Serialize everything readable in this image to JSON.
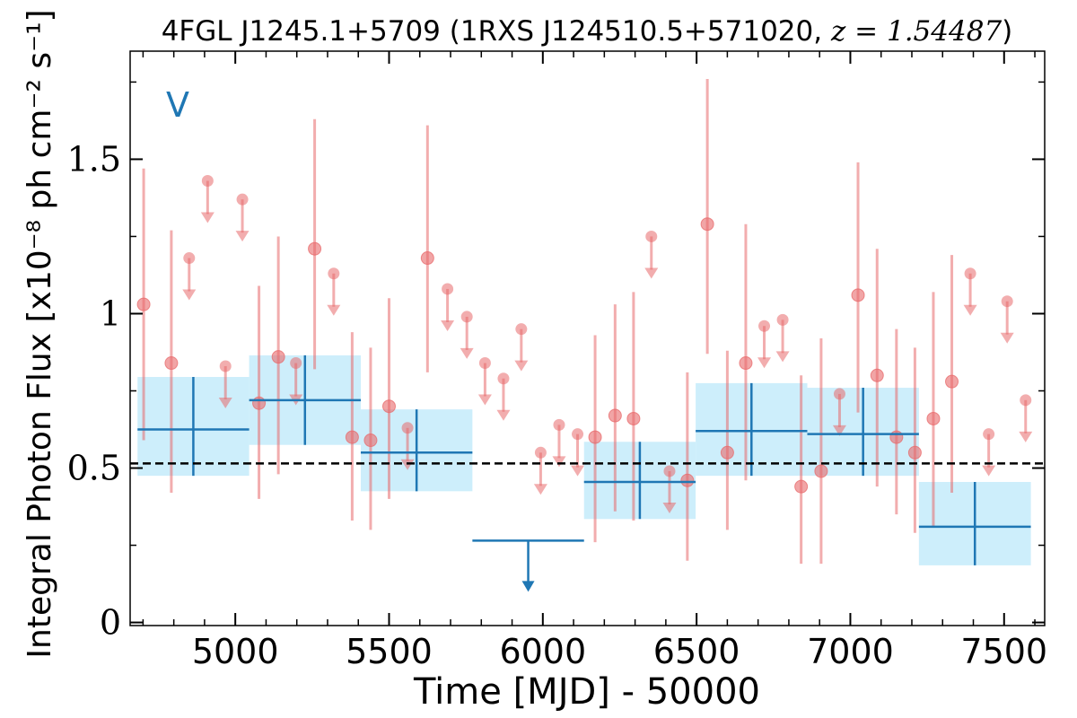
{
  "chart_data": {
    "type": "scatter",
    "title_text": "4FGL J1245.1+5709 (1RXS J124510.5+571020, ",
    "title_math": "z = 1.54487",
    "title_close": ")",
    "ylabel": "Integral Photon Flux [x10⁻⁸ ph cm⁻² s⁻¹]",
    "xlabel": "Time [MJD] - 50000",
    "panel_label": "V",
    "xlim": [
      4658,
      7632
    ],
    "ylim": [
      -0.01,
      1.85
    ],
    "x_ticks": [
      {
        "value": 5000,
        "label": "5000"
      },
      {
        "value": 5500,
        "label": "5500"
      },
      {
        "value": 6000,
        "label": "6000"
      },
      {
        "value": 6500,
        "label": "6500"
      },
      {
        "value": 7000,
        "label": "7000"
      },
      {
        "value": 7500,
        "label": "7500"
      }
    ],
    "y_ticks": [
      {
        "value": 0,
        "label": "0"
      },
      {
        "value": 0.5,
        "label": "0.5"
      },
      {
        "value": 1,
        "label": "1"
      },
      {
        "value": 1.5,
        "label": "1.5"
      }
    ],
    "x_minor_step": 100,
    "y_minor_step": 0.25,
    "reference_line": {
      "y": 0.515,
      "style": "dashed"
    },
    "colors": {
      "binned": "#1f77b4",
      "band": "#cdeefb",
      "monthly": "#e8696b",
      "reference": "#000000"
    },
    "series": [
      {
        "kind": "detections",
        "points": [
          {
            "x": 4702,
            "y": 1.03,
            "lo": 0.59,
            "hi": 1.47
          },
          {
            "x": 4792,
            "y": 0.84,
            "lo": 0.42,
            "hi": 1.27
          },
          {
            "x": 5077,
            "y": 0.71,
            "lo": 0.4,
            "hi": 1.09
          },
          {
            "x": 5140,
            "y": 0.86,
            "lo": 0.48,
            "hi": 1.25
          },
          {
            "x": 5258,
            "y": 1.21,
            "lo": 0.82,
            "hi": 1.63
          },
          {
            "x": 5380,
            "y": 0.6,
            "lo": 0.33,
            "hi": 0.94
          },
          {
            "x": 5440,
            "y": 0.59,
            "lo": 0.3,
            "hi": 0.89
          },
          {
            "x": 5500,
            "y": 0.7,
            "lo": 0.4,
            "hi": 1.05
          },
          {
            "x": 5625,
            "y": 1.18,
            "lo": 0.81,
            "hi": 1.61
          },
          {
            "x": 6170,
            "y": 0.6,
            "lo": 0.26,
            "hi": 0.93
          },
          {
            "x": 6235,
            "y": 0.67,
            "lo": 0.36,
            "hi": 1.03
          },
          {
            "x": 6295,
            "y": 0.66,
            "lo": 0.33,
            "hi": 1.07
          },
          {
            "x": 6470,
            "y": 0.46,
            "lo": 0.2,
            "hi": 0.81
          },
          {
            "x": 6535,
            "y": 1.29,
            "lo": 0.87,
            "hi": 1.76
          },
          {
            "x": 6600,
            "y": 0.55,
            "lo": 0.3,
            "hi": 0.88
          },
          {
            "x": 6660,
            "y": 0.84,
            "lo": 0.46,
            "hi": 1.29
          },
          {
            "x": 6840,
            "y": 0.44,
            "lo": 0.19,
            "hi": 0.8
          },
          {
            "x": 6905,
            "y": 0.49,
            "lo": 0.19,
            "hi": 0.92
          },
          {
            "x": 7025,
            "y": 1.06,
            "lo": 0.68,
            "hi": 1.49
          },
          {
            "x": 7087,
            "y": 0.8,
            "lo": 0.44,
            "hi": 1.21
          },
          {
            "x": 7150,
            "y": 0.6,
            "lo": 0.35,
            "hi": 0.95
          },
          {
            "x": 7210,
            "y": 0.55,
            "lo": 0.29,
            "hi": 0.89
          },
          {
            "x": 7270,
            "y": 0.66,
            "lo": 0.31,
            "hi": 1.07
          },
          {
            "x": 7330,
            "y": 0.78,
            "lo": 0.42,
            "hi": 1.19
          }
        ]
      },
      {
        "kind": "upper_limits",
        "points": [
          {
            "x": 4850,
            "y": 1.18
          },
          {
            "x": 4910,
            "y": 1.43
          },
          {
            "x": 4968,
            "y": 0.83
          },
          {
            "x": 5023,
            "y": 1.37
          },
          {
            "x": 5197,
            "y": 0.84
          },
          {
            "x": 5320,
            "y": 1.13
          },
          {
            "x": 5560,
            "y": 0.63
          },
          {
            "x": 5690,
            "y": 1.08
          },
          {
            "x": 5753,
            "y": 0.99
          },
          {
            "x": 5812,
            "y": 0.84
          },
          {
            "x": 5872,
            "y": 0.79
          },
          {
            "x": 5930,
            "y": 0.95
          },
          {
            "x": 5993,
            "y": 0.55
          },
          {
            "x": 6053,
            "y": 0.64
          },
          {
            "x": 6113,
            "y": 0.61
          },
          {
            "x": 6353,
            "y": 1.25
          },
          {
            "x": 6412,
            "y": 0.49
          },
          {
            "x": 6720,
            "y": 0.96
          },
          {
            "x": 6780,
            "y": 0.98
          },
          {
            "x": 6965,
            "y": 0.74
          },
          {
            "x": 7390,
            "y": 1.13
          },
          {
            "x": 7450,
            "y": 0.61
          },
          {
            "x": 7510,
            "y": 1.04
          },
          {
            "x": 7570,
            "y": 0.72
          }
        ]
      },
      {
        "kind": "binned",
        "points": [
          {
            "x0": 4682,
            "x1": 5045,
            "y": 0.625,
            "lo": 0.475,
            "hi": 0.795
          },
          {
            "x0": 5045,
            "x1": 5408,
            "y": 0.72,
            "lo": 0.575,
            "hi": 0.865
          },
          {
            "x0": 5408,
            "x1": 5771,
            "y": 0.55,
            "lo": 0.425,
            "hi": 0.69
          },
          {
            "x0": 6134,
            "x1": 6497,
            "y": 0.455,
            "lo": 0.335,
            "hi": 0.585
          },
          {
            "x0": 6497,
            "x1": 6860,
            "y": 0.62,
            "lo": 0.475,
            "hi": 0.775
          },
          {
            "x0": 6860,
            "x1": 7223,
            "y": 0.61,
            "lo": 0.475,
            "hi": 0.76
          },
          {
            "x0": 7223,
            "x1": 7587,
            "y": 0.31,
            "lo": 0.185,
            "hi": 0.455
          }
        ]
      },
      {
        "kind": "binned_upper_limit",
        "points": [
          {
            "x0": 5771,
            "x1": 6134,
            "y": 0.265
          }
        ]
      }
    ]
  }
}
